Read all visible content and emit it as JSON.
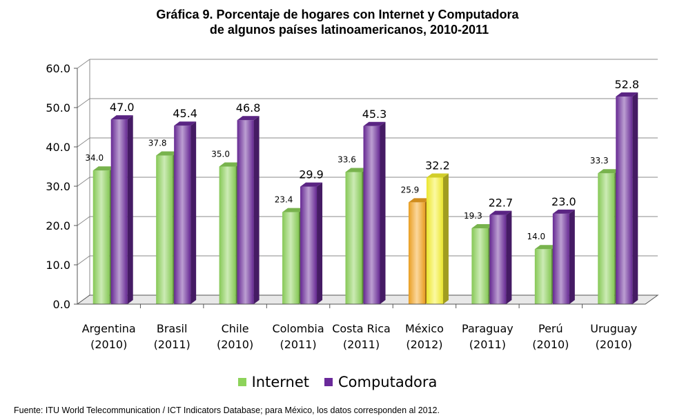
{
  "title_line1": "Gráfica 9. Porcentaje de hogares con Internet y Computadora",
  "title_line2": "de algunos países latinoamericanos, 2010-2011",
  "source": "Fuente: ITU World Telecommunication / ICT Indicators Database; para México, los datos corresponden al 2012.",
  "colors": {
    "internet": "#8dd35a",
    "computadora": "#6a2a9a",
    "mexico_internet": "#f5a623",
    "mexico_computadora": "#f7f230"
  },
  "chart_data": {
    "type": "bar",
    "categories": [
      [
        "Argentina",
        "(2010)"
      ],
      [
        "Brasil",
        "(2011)"
      ],
      [
        "Chile",
        "(2010)"
      ],
      [
        "Colombia",
        "(2011)"
      ],
      [
        "Costa Rica",
        "(2011)"
      ],
      [
        "México",
        "(2012)"
      ],
      [
        "Paraguay",
        "(2011)"
      ],
      [
        "Perú",
        "(2010)"
      ],
      [
        "Uruguay",
        "(2010)"
      ]
    ],
    "series": [
      {
        "name": "Internet",
        "values": [
          34.0,
          37.8,
          35.0,
          23.4,
          33.6,
          25.9,
          19.3,
          14.0,
          33.3
        ],
        "labels": [
          "34.0",
          "37.8",
          "35.0",
          "23.4",
          "33.6",
          "25.9",
          "19.3",
          "14.0",
          "33.3"
        ]
      },
      {
        "name": "Computadora",
        "values": [
          47.0,
          45.4,
          46.8,
          29.9,
          45.3,
          32.2,
          22.7,
          23.0,
          52.8
        ],
        "labels": [
          "47.0",
          "45.4",
          "46.8",
          "29.9",
          "45.3",
          "32.2",
          "22.7",
          "23.0",
          "52.8"
        ]
      }
    ],
    "yticks": [
      "0.0",
      "10.0",
      "20.0",
      "30.0",
      "40.0",
      "50.0",
      "60.0"
    ],
    "ylim": [
      0,
      60
    ],
    "grid": true,
    "legend_position": "bottom"
  }
}
